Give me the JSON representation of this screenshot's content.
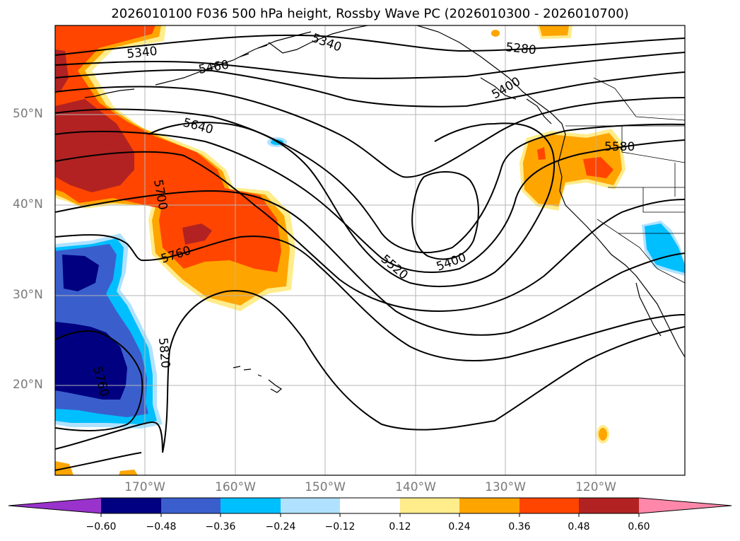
{
  "title": "2026010100 F036 500 hPa height, Rossby Wave PC (2026010300 - 2026010700)",
  "map": {
    "lat_labels": [
      "50°N",
      "40°N",
      "30°N",
      "20°N"
    ],
    "lon_labels": [
      "170°W",
      "160°W",
      "150°W",
      "140°W",
      "130°W",
      "120°W"
    ],
    "contour_labels": [
      "5340",
      "5460",
      "5340",
      "5280",
      "5400",
      "5640",
      "5580",
      "5700",
      "5760",
      "5400",
      "5520",
      "5820",
      "5760"
    ]
  },
  "colorbar": {
    "tick_labels": [
      "−0.60",
      "−0.48",
      "−0.36",
      "−0.24",
      "−0.12",
      "0.12",
      "0.24",
      "0.36",
      "0.48",
      "0.60"
    ],
    "colors": [
      "#9933cc",
      "#000080",
      "#3a5fcd",
      "#00bfff",
      "#b0e2ff",
      "#ffffff",
      "#ffec8b",
      "#ffa500",
      "#ff4500",
      "#b22222",
      "#ff88aa"
    ]
  }
}
